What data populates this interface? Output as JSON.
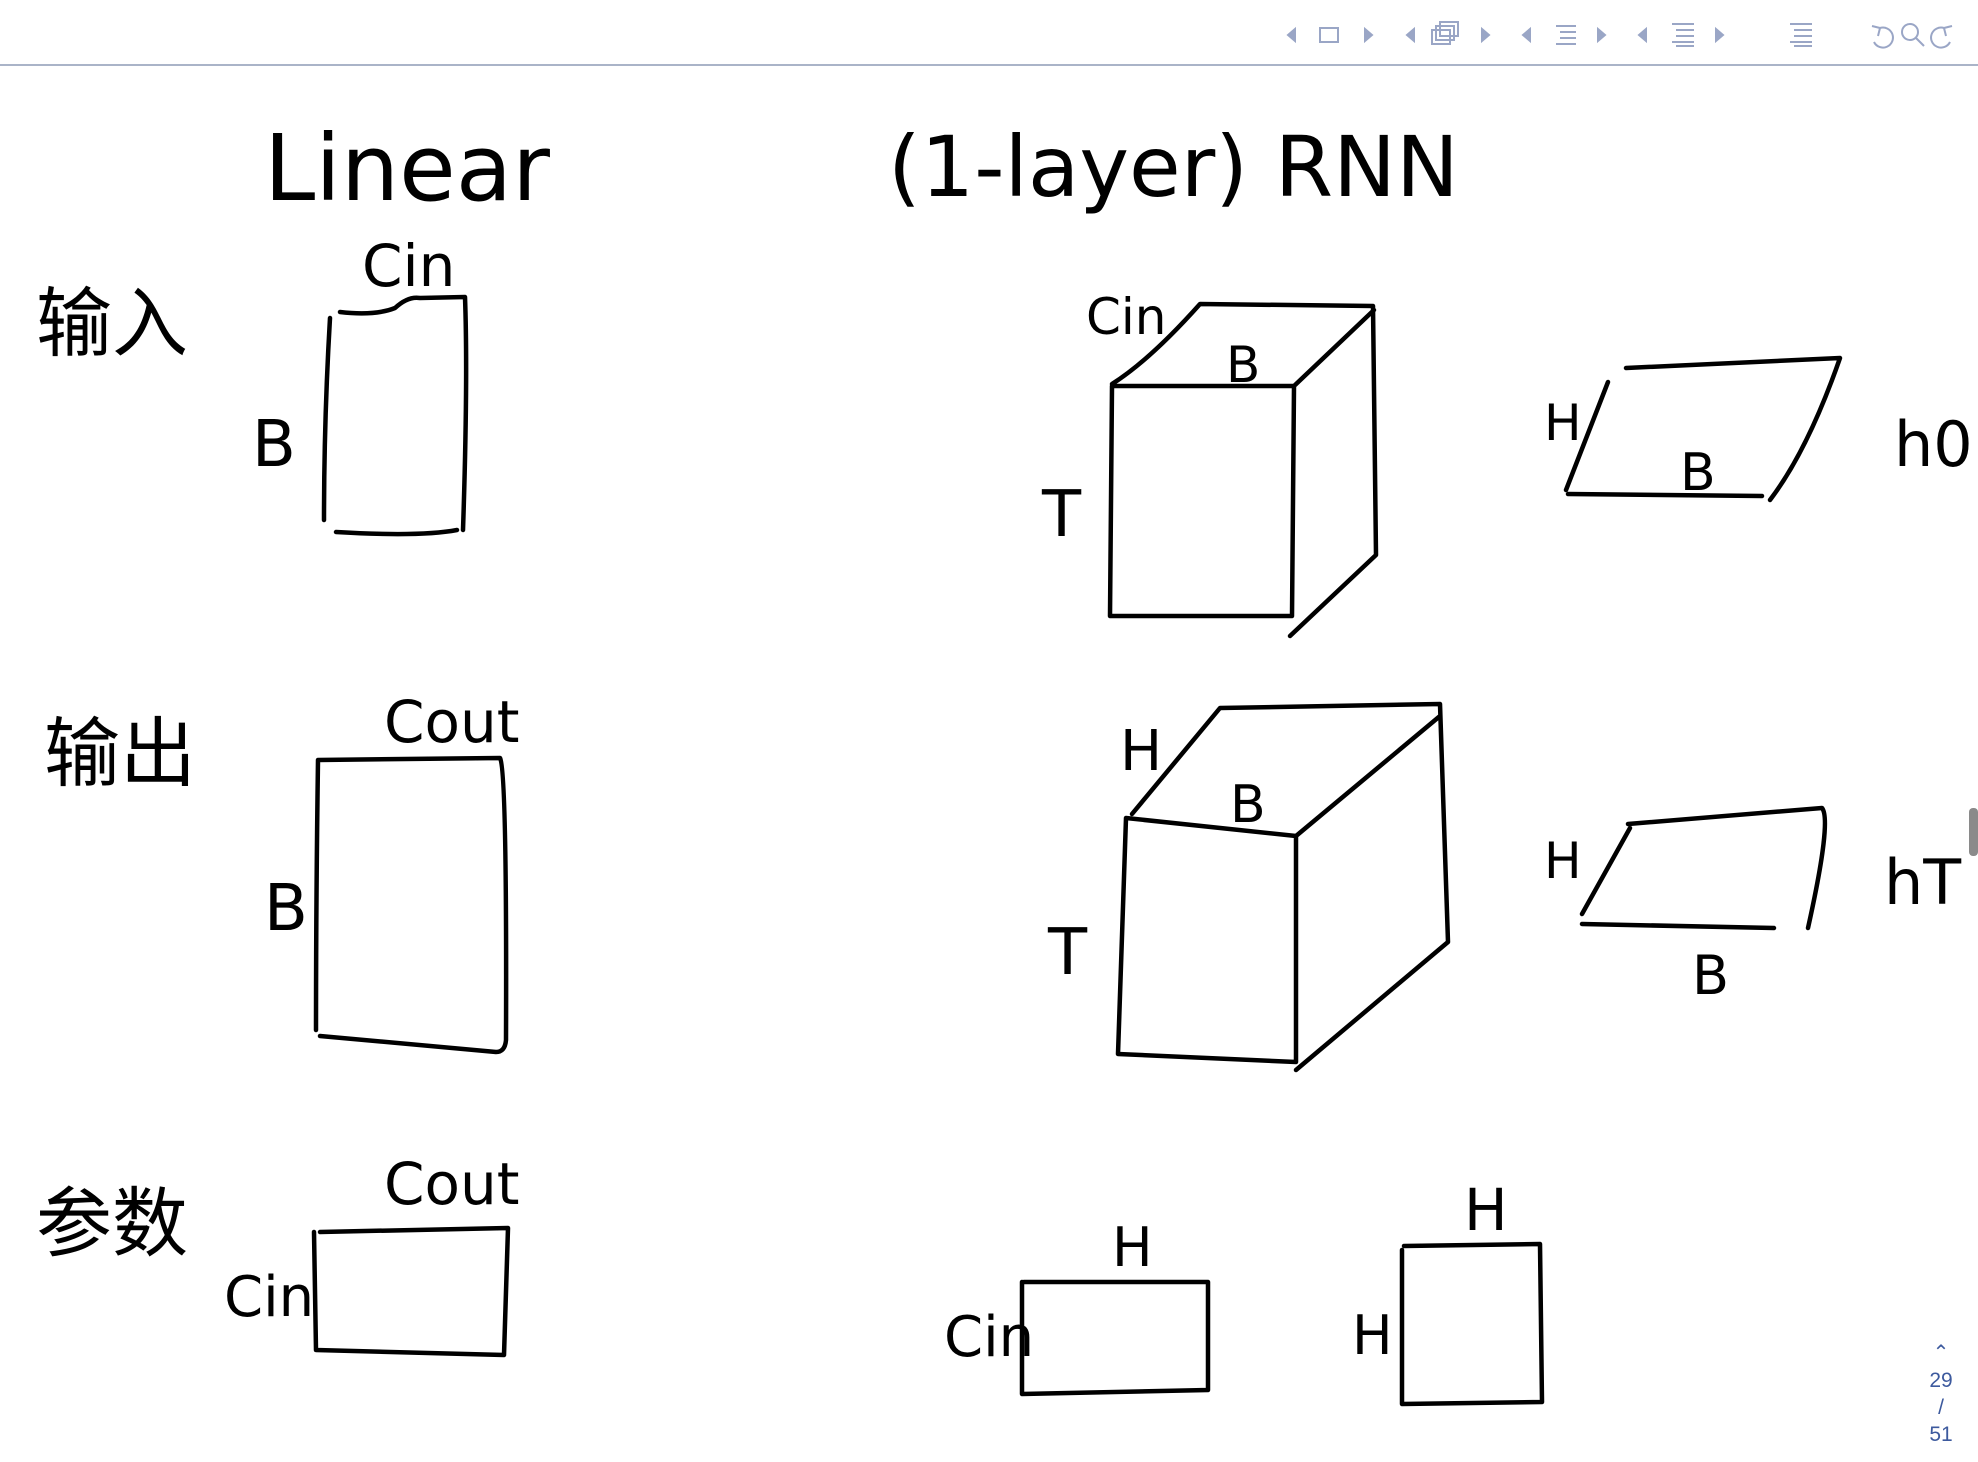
{
  "toolbar": {
    "icons": [
      "frame-back-icon",
      "frame-icon",
      "frame-forward-icon",
      "subsection-back-icon",
      "subsection-icon",
      "subsection-forward-icon",
      "section-back-icon",
      "section-icon",
      "section-forward-icon",
      "presentation-back-icon",
      "presentation-icon",
      "presentation-forward-icon",
      "outline-icon",
      "undo-icon",
      "search-icon",
      "redo-icon"
    ],
    "color": "#9aa6c6"
  },
  "headings": {
    "linear": "Linear",
    "rnn": "(1-layer) RNN"
  },
  "row_labels": {
    "input": "输入",
    "output": "输出",
    "params": "参数"
  },
  "linear": {
    "input": {
      "top": "Cin",
      "side": "B"
    },
    "output": {
      "top": "Cout",
      "side": "B"
    },
    "params": {
      "top": "Cout",
      "side": "Cin"
    }
  },
  "rnn": {
    "input_cube": {
      "depth": "Cin",
      "top": "B",
      "side": "T"
    },
    "h0": {
      "side": "H",
      "bottom": "B",
      "name": "h0"
    },
    "output_cube": {
      "depth": "H",
      "top": "B",
      "side": "T"
    },
    "hT": {
      "side": "H",
      "bottom": "B",
      "name": "hT"
    },
    "param_ih": {
      "top": "H",
      "side": "Cin"
    },
    "param_hh": {
      "top": "H",
      "side": "H"
    }
  },
  "pager": {
    "current": "29",
    "separator": "/",
    "total": "51"
  }
}
